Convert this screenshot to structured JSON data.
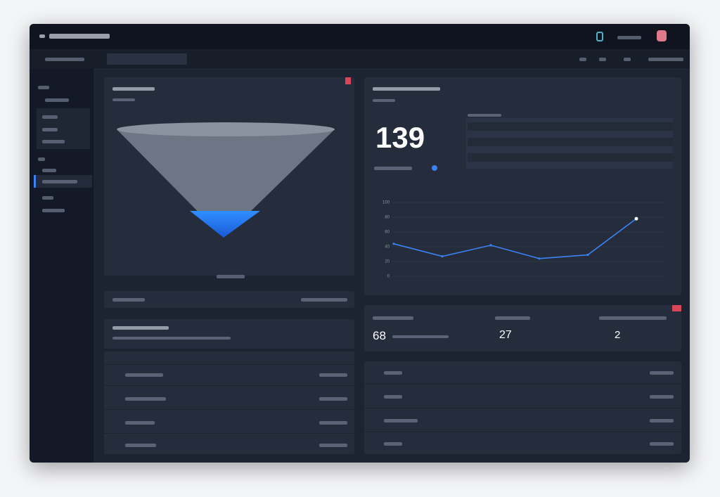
{
  "metrics": {
    "total": "139",
    "count": "68",
    "rate": "27",
    "other": "2"
  },
  "chart_data": {
    "type": "line",
    "values": [
      44,
      27,
      42,
      24,
      29,
      78
    ],
    "color": "#3b82f6",
    "ylim": [
      0,
      100
    ],
    "yticks": [
      0,
      20,
      40,
      60,
      80,
      100
    ],
    "grid": true
  }
}
